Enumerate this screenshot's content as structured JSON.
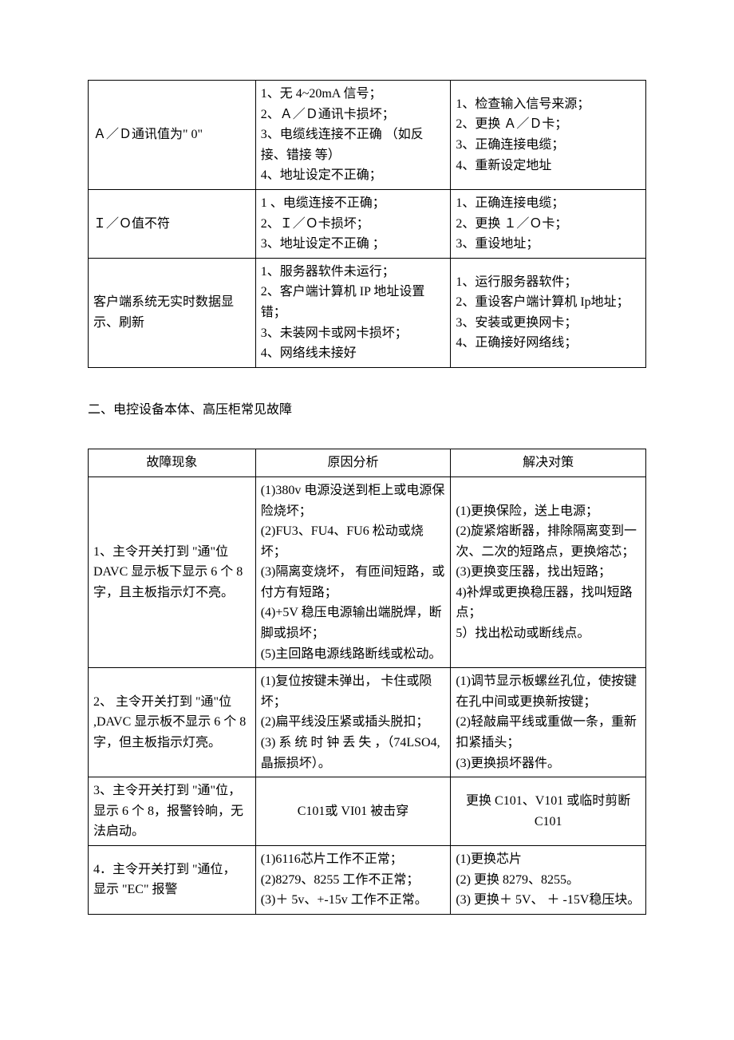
{
  "table1": {
    "rows": [
      {
        "c1": "Ａ／Ｄ通讯值为\" 0\"",
        "c2": "1、无 4~20mA 信号；\n2、Ａ／Ｄ通讯卡损坏；\n3、电缆线连接不正确 （如反接、错接  等）\n4、地址设定不正确；",
        "c3": "1、检查输入信号来源；\n2、更换 Ａ／Ｄ卡；\n3、正确连接电缆；\n4、重新设定地址"
      },
      {
        "c1": "Ｉ／Ｏ值不符",
        "c2": "1 、电缆连接不正确；\n2、Ｉ／Ｏ卡损坏；\n3、地址设定不正确 ；",
        "c3": "1、正确连接电缆；\n2、更换 １／Ｏ卡；\n3、重设地址；"
      },
      {
        "c1": "客户端系统无实时数据显示、刷新",
        "c2": "1、服务器软件未运行；\n2、客户端计算机  IP 地址设置错；\n3、未装网卡或网卡损坏；\n4、网络线未接好",
        "c3": "1、运行服务器软件；\n2、重设客户端计算机   Ip地址；\n3、安装或更换网卡；\n4、正确接好网络线；"
      }
    ]
  },
  "section2_title": "二、电控设备本体、高压柜常见故障",
  "table2": {
    "headers": {
      "h1": "故障现象",
      "h2": "原因分析",
      "h3": "解决对策"
    },
    "rows": [
      {
        "c1": "1、主令开关打到 \"通\"位 DAVC 显示板下显示 6 个 8 字，且主板指示灯不亮。",
        "c2": "(1)380v 电源没送到柜上或电源保险烧坏；\n(2)FU3、FU4、FU6 松动或烧坏；\n(3)隔离变烧坏， 有匝间短路，或付方有短路；\n(4)+5V 稳压电源输出端脱焊，断脚或损坏；\n(5)主回路电源线路断线或松动。",
        "c3": "(1)更换保险，送上电源；\n(2)旋紧熔断器，排除隔离变到一次、二次的短路点，更换熔芯；\n(3)更换变压器，找出短路；\n4)补焊或更换稳压器，找叫短路点；\n5）找出松动或断线点。"
      },
      {
        "c1": "2、 主令开关打到 \"通\"位 ,DAVC  显示板不显示 6 个 8 字，但主板指示灯亮。",
        "c2": "(1)复位按键未弹出， 卡住或陨坏；\n(2)扁平线没压紧或插头脱扣；\n(3) 系 统 时 钟 丢 失 ，（74LSO4,晶振损坏）。",
        "c3": "(1)调节显示板螺丝孔位，使按键在孔中间或更换新按键；\n(2)轻敲扁平线或重做一条，重新扣紧插头；\n(3)更换损坏器件。"
      },
      {
        "c1": "3、主令开关打到 \"通\"位，显示 6 个 8，报警铃晌，无法启动。",
        "c2": "C101或 VI01 被击穿",
        "c3": "更换 C101、V101 或临时剪断 C101",
        "c2_center": true,
        "c3_center": true
      },
      {
        "c1": "4．主令开关打到 \"通位， 显示 \"EC\" 报警",
        "c2": "(1)6116芯片工作不正常；\n(2)8279、8255 工作不正常；\n(3)＋ 5v、+-15v 工作不正常。",
        "c3": "(1)更换芯片\n(2) 更换 8279、8255。\n(3)  更换＋ 5V、 ＋ -15V稳压块。"
      }
    ]
  }
}
